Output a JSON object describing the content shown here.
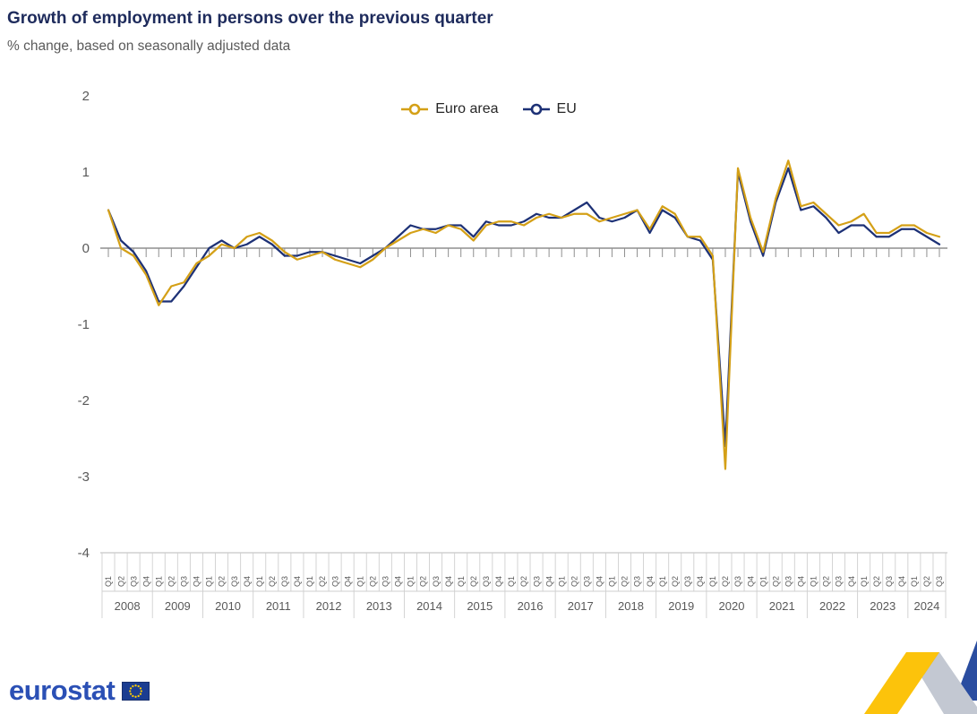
{
  "header": {
    "title": "Growth of employment in persons over the previous quarter",
    "subtitle": "% change, based on seasonally adjusted data"
  },
  "footer": {
    "logo_text": "eurostat"
  },
  "colors": {
    "euro_area": "#D4A017",
    "eu": "#1D3176",
    "logo_blue": "#2B50B5",
    "flag_blue": "#1B3D91",
    "star_yellow": "#FFCC00",
    "ribbon_yellow": "#FCC30B",
    "ribbon_gray": "#C3C8D2",
    "ribbon_gray_dark": "#9AA1AF",
    "ribbon_blue": "#2A4DA0",
    "axis_gray": "#8F8F8F",
    "text_gray": "#595959"
  },
  "chart_data": {
    "type": "line",
    "title": "Growth of employment in persons over the previous quarter",
    "subtitle": "% change, based on seasonally adjusted data",
    "xlabel": "",
    "ylabel": "",
    "ylim": [
      -4,
      2
    ],
    "yticks": [
      2,
      1,
      0,
      -1,
      -2,
      -3,
      -4
    ],
    "grid": false,
    "legend_position": "top-center",
    "categories": [
      "2008-Q1",
      "2008-Q2",
      "2008-Q3",
      "2008-Q4",
      "2009-Q1",
      "2009-Q2",
      "2009-Q3",
      "2009-Q4",
      "2010-Q1",
      "2010-Q2",
      "2010-Q3",
      "2010-Q4",
      "2011-Q1",
      "2011-Q2",
      "2011-Q3",
      "2011-Q4",
      "2012-Q1",
      "2012-Q2",
      "2012-Q3",
      "2012-Q4",
      "2013-Q1",
      "2013-Q2",
      "2013-Q3",
      "2013-Q4",
      "2014-Q1",
      "2014-Q2",
      "2014-Q3",
      "2014-Q4",
      "2015-Q1",
      "2015-Q2",
      "2015-Q3",
      "2015-Q4",
      "2016-Q1",
      "2016-Q2",
      "2016-Q3",
      "2016-Q4",
      "2017-Q1",
      "2017-Q2",
      "2017-Q3",
      "2017-Q4",
      "2018-Q1",
      "2018-Q2",
      "2018-Q3",
      "2018-Q4",
      "2019-Q1",
      "2019-Q2",
      "2019-Q3",
      "2019-Q4",
      "2020-Q1",
      "2020-Q2",
      "2020-Q3",
      "2020-Q4",
      "2021-Q1",
      "2021-Q2",
      "2021-Q3",
      "2021-Q4",
      "2022-Q1",
      "2022-Q2",
      "2022-Q3",
      "2022-Q4",
      "2023-Q1",
      "2023-Q2",
      "2023-Q3",
      "2023-Q4",
      "2024-Q1",
      "2024-Q2",
      "2024-Q3"
    ],
    "series": [
      {
        "name": "Euro area",
        "color": "#D4A017",
        "values": [
          0.5,
          0.0,
          -0.1,
          -0.35,
          -0.75,
          -0.5,
          -0.45,
          -0.2,
          -0.1,
          0.05,
          0.0,
          0.15,
          0.2,
          0.1,
          -0.05,
          -0.15,
          -0.1,
          -0.05,
          -0.15,
          -0.2,
          -0.25,
          -0.15,
          0.0,
          0.1,
          0.2,
          0.25,
          0.2,
          0.3,
          0.25,
          0.1,
          0.3,
          0.35,
          0.35,
          0.3,
          0.4,
          0.45,
          0.4,
          0.45,
          0.45,
          0.35,
          0.4,
          0.45,
          0.5,
          0.25,
          0.55,
          0.45,
          0.15,
          0.15,
          -0.1,
          -2.9,
          1.05,
          0.4,
          -0.05,
          0.65,
          1.15,
          0.55,
          0.6,
          0.45,
          0.3,
          0.35,
          0.45,
          0.2,
          0.2,
          0.3,
          0.3,
          0.2,
          0.15
        ]
      },
      {
        "name": "EU",
        "color": "#1D3176",
        "values": [
          0.5,
          0.1,
          -0.05,
          -0.3,
          -0.7,
          -0.7,
          -0.5,
          -0.25,
          0.0,
          0.1,
          0.0,
          0.05,
          0.15,
          0.05,
          -0.1,
          -0.1,
          -0.05,
          -0.05,
          -0.1,
          -0.15,
          -0.2,
          -0.1,
          0.0,
          0.15,
          0.3,
          0.25,
          0.25,
          0.3,
          0.3,
          0.15,
          0.35,
          0.3,
          0.3,
          0.35,
          0.45,
          0.4,
          0.4,
          0.5,
          0.6,
          0.4,
          0.35,
          0.4,
          0.5,
          0.2,
          0.5,
          0.4,
          0.15,
          0.1,
          -0.15,
          -2.6,
          1.0,
          0.35,
          -0.1,
          0.6,
          1.05,
          0.5,
          0.55,
          0.4,
          0.2,
          0.3,
          0.3,
          0.15,
          0.15,
          0.25,
          0.25,
          0.15,
          0.05
        ]
      }
    ]
  }
}
